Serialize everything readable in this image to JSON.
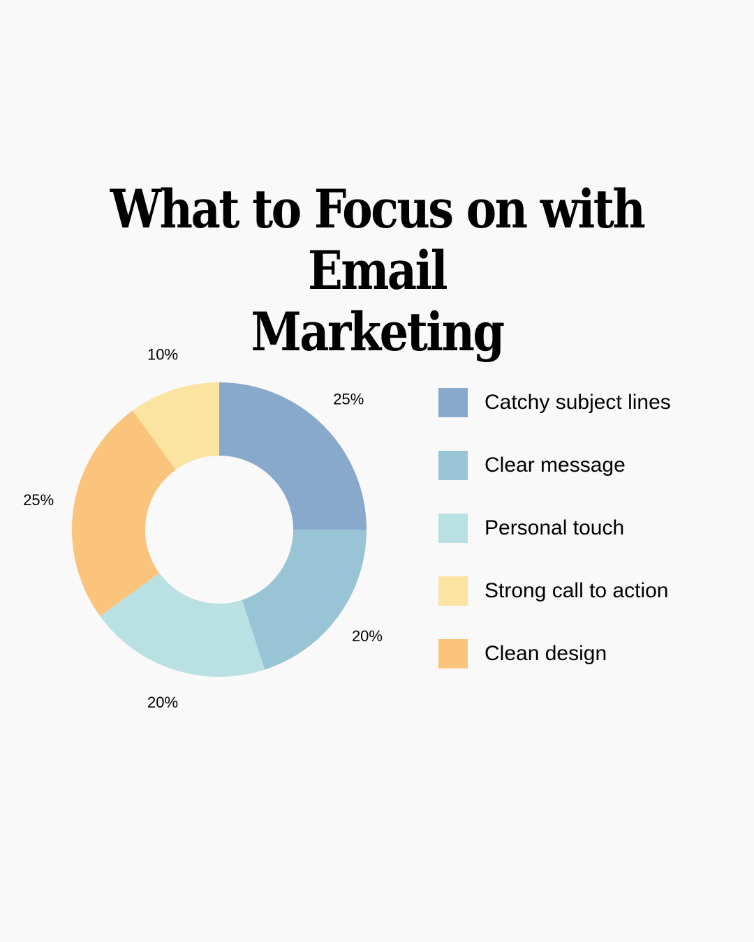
{
  "chart_data": {
    "type": "pie",
    "title": [
      "What to Focus on with Email",
      "Marketing"
    ],
    "donut": true,
    "legend_position": "right",
    "series": [
      {
        "name": "Catchy subject lines",
        "value": 25,
        "label": "25%",
        "color": "#88a9cc"
      },
      {
        "name": "Clear message",
        "value": 20,
        "label": "20%",
        "color": "#99c4d5"
      },
      {
        "name": "Personal touch",
        "value": 20,
        "label": "20%",
        "color": "#b9e0e2"
      },
      {
        "name": "Clean design",
        "value": 25,
        "label": "25%",
        "color": "#fbc47c"
      },
      {
        "name": "Strong call to action",
        "value": 10,
        "label": "10%",
        "color": "#fbe3a1"
      }
    ],
    "legend": [
      {
        "name": "Catchy subject lines",
        "color": "#88a9cc"
      },
      {
        "name": "Clear message",
        "color": "#99c4d5"
      },
      {
        "name": "Personal touch",
        "color": "#b9e0e2"
      },
      {
        "name": "Strong call to action",
        "color": "#fbe3a1"
      },
      {
        "name": "Clean design",
        "color": "#fbc47c"
      }
    ]
  }
}
